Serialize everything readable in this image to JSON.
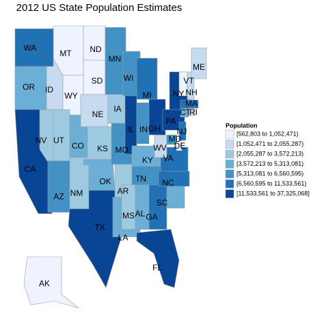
{
  "title": "2012 US State Population Estimates",
  "legend": {
    "title": "Population",
    "entries": [
      {
        "label": "[562,803 to 1,052,471)",
        "color": "#eff3ff"
      },
      {
        "label": "[1,052,471 to 2,055,287)",
        "color": "#c6dbef"
      },
      {
        "label": "[2,055,287 to 3,572,213)",
        "color": "#9ecae1"
      },
      {
        "label": "[3,572,213 to 5,313,081)",
        "color": "#6baed6"
      },
      {
        "label": "[5,313,081 to 6,560,595)",
        "color": "#4292c6"
      },
      {
        "label": "[6,560,595 to 11,533,561)",
        "color": "#2171b5"
      },
      {
        "label": "[11,533,561 to 37,325,068]",
        "color": "#084594"
      }
    ]
  },
  "states": [
    {
      "label": "NV",
      "color": "#9ecae1"
    },
    {
      "label": "MT",
      "color": "#eff3ff"
    },
    {
      "label": "ID",
      "color": "#c6dbef"
    },
    {
      "label": "WA",
      "color": "#2171b5"
    },
    {
      "label": "OR",
      "color": "#6baed6"
    },
    {
      "label": "CA",
      "color": "#084594"
    },
    {
      "label": "WY",
      "color": "#eff3ff"
    },
    {
      "label": "UT",
      "color": "#9ecae1"
    },
    {
      "label": "AZ",
      "color": "#4292c6"
    },
    {
      "label": "CO",
      "color": "#6baed6"
    },
    {
      "label": "NM",
      "color": "#9ecae1"
    },
    {
      "label": "ND",
      "color": "#eff3ff"
    },
    {
      "label": "SD",
      "color": "#eff3ff"
    },
    {
      "label": "NE",
      "color": "#c6dbef"
    },
    {
      "label": "KS",
      "color": "#9ecae1"
    },
    {
      "label": "OK",
      "color": "#6baed6"
    },
    {
      "label": "TX",
      "color": "#084594"
    },
    {
      "label": "MN",
      "color": "#4292c6"
    },
    {
      "label": "IA",
      "color": "#9ecae1"
    },
    {
      "label": "MO",
      "color": "#4292c6"
    },
    {
      "label": "AR",
      "color": "#9ecae1"
    },
    {
      "label": "LA",
      "color": "#6baed6"
    },
    {
      "label": "WI",
      "color": "#4292c6"
    },
    {
      "label": "IL",
      "color": "#084594"
    },
    {
      "label": "MI",
      "color": "#2171b5"
    },
    {
      "label": "IN",
      "color": "#4292c6"
    },
    {
      "label": "OH",
      "color": "#084594"
    },
    {
      "label": "KY",
      "color": "#6baed6"
    },
    {
      "label": "TN",
      "color": "#4292c6"
    },
    {
      "label": "MS",
      "color": "#9ecae1"
    },
    {
      "label": "AL",
      "color": "#6baed6"
    },
    {
      "label": "GA",
      "color": "#2171b5"
    },
    {
      "label": "SC",
      "color": "#6baed6"
    },
    {
      "label": "FL",
      "color": "#084594"
    },
    {
      "label": "NC",
      "color": "#2171b5"
    },
    {
      "label": "VA",
      "color": "#2171b5"
    },
    {
      "label": "WV",
      "color": "#c6dbef"
    },
    {
      "label": "PA",
      "color": "#084594"
    },
    {
      "label": "NY",
      "color": "#084594"
    },
    {
      "label": "MD",
      "color": "#4292c6"
    },
    {
      "label": "DE",
      "color": "#eff3ff"
    },
    {
      "label": "NJ",
      "color": "#2171b5"
    },
    {
      "label": "CT",
      "color": "#6baed6"
    },
    {
      "label": "RI",
      "color": "#c6dbef"
    },
    {
      "label": "MA",
      "color": "#2171b5"
    },
    {
      "label": "VT",
      "color": "#eff3ff"
    },
    {
      "label": "NH",
      "color": "#c6dbef"
    },
    {
      "label": "ME",
      "color": "#c6dbef"
    },
    {
      "label": "AK",
      "color": "#eff3ff"
    }
  ]
}
